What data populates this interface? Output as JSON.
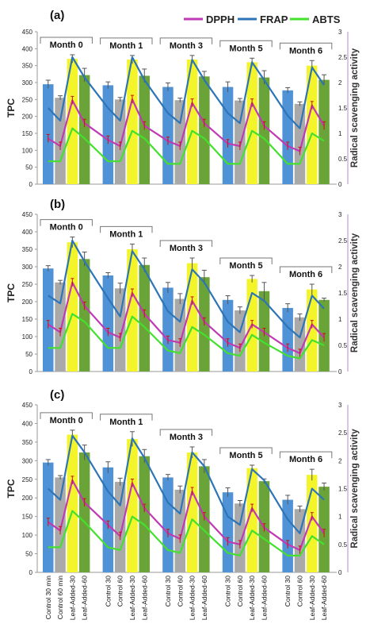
{
  "legend": [
    {
      "label": "DPPH",
      "color": "#c03ab3"
    },
    {
      "label": "FRAP",
      "color": "#2d75b6"
    },
    {
      "label": "ABTS",
      "color": "#44e02e"
    }
  ],
  "colors": {
    "control30": "#4f92d6",
    "control60": "#a9a9a9",
    "leaf30": "#f4f42a",
    "leaf60": "#6aa338",
    "dpph": "#c03ab3",
    "frap": "#2d75b6",
    "abts": "#44e02e",
    "errorbar": "#cc1111"
  },
  "chart_data": [
    {
      "type": "bar",
      "panel_label": "(a)",
      "ylabel": "TPC",
      "y2label": "Radical scavenging activity",
      "ylim": [
        0,
        450
      ],
      "y2lim": [
        0,
        3
      ],
      "yticks": [
        0,
        50,
        100,
        150,
        200,
        250,
        300,
        350,
        400,
        450
      ],
      "y2ticks": [
        0,
        0.5,
        1,
        1.5,
        2,
        2.5,
        3
      ],
      "groups": [
        "Month 0",
        "Month 1",
        "Month 3",
        "Month 5",
        "Month 6"
      ],
      "bar_series": [
        "Control 30 min",
        "Control 60 min",
        "Leaf-Added-30",
        "Leaf-Added-60"
      ],
      "bar_values": [
        [
          295,
          255,
          370,
          322
        ],
        [
          292,
          250,
          368,
          320
        ],
        [
          287,
          248,
          368,
          318
        ],
        [
          287,
          247,
          360,
          315
        ],
        [
          277,
          237,
          350,
          308
        ]
      ],
      "bar_errors": [
        [
          12,
          6,
          12,
          20
        ],
        [
          10,
          6,
          12,
          20
        ],
        [
          12,
          6,
          12,
          15
        ],
        [
          15,
          6,
          12,
          20
        ],
        [
          8,
          6,
          15,
          15
        ]
      ],
      "lines": [
        {
          "name": "DPPH",
          "values": [
            [
              0.9,
              0.75,
              1.65,
              1.2
            ],
            [
              0.87,
              0.75,
              1.67,
              1.15
            ],
            [
              0.85,
              0.75,
              1.6,
              1.2
            ],
            [
              0.8,
              0.75,
              1.6,
              1.15
            ],
            [
              0.75,
              0.65,
              1.55,
              1.15
            ]
          ]
        },
        {
          "name": "FRAP",
          "values": [
            [
              1.5,
              1.25,
              2.5,
              2.1
            ],
            [
              1.5,
              1.25,
              2.5,
              2.05
            ],
            [
              1.4,
              1.2,
              2.45,
              2.05
            ],
            [
              1.4,
              1.2,
              2.4,
              2.05
            ],
            [
              1.35,
              1.1,
              2.3,
              1.95
            ]
          ]
        },
        {
          "name": "ABTS",
          "values": [
            [
              0.45,
              0.45,
              1.1,
              0.9
            ],
            [
              0.45,
              0.45,
              1.05,
              0.9
            ],
            [
              0.4,
              0.4,
              1.05,
              0.9
            ],
            [
              0.4,
              0.4,
              1.05,
              0.9
            ],
            [
              0.4,
              0.4,
              1.0,
              0.85
            ]
          ]
        }
      ]
    },
    {
      "type": "bar",
      "panel_label": "(b)",
      "ylabel": "TPC",
      "y2label": "Radical scavenging activity",
      "ylim": [
        0,
        450
      ],
      "y2lim": [
        0,
        3
      ],
      "yticks": [
        0,
        50,
        100,
        150,
        200,
        250,
        300,
        350,
        400,
        450
      ],
      "y2ticks": [
        0,
        0.5,
        1,
        1.5,
        2,
        2.5,
        3
      ],
      "groups": [
        "Month 0",
        "Month 1",
        "Month 3",
        "Month 5",
        "Month 6"
      ],
      "bar_series": [
        "Control 30 min",
        "Control 60 min",
        "Leaf-Added-30",
        "Leaf-Added-60"
      ],
      "bar_values": [
        [
          295,
          255,
          370,
          322
        ],
        [
          275,
          238,
          350,
          305
        ],
        [
          240,
          208,
          310,
          270
        ],
        [
          205,
          175,
          265,
          230
        ],
        [
          182,
          155,
          235,
          205
        ]
      ],
      "bar_errors": [
        [
          8,
          6,
          15,
          20
        ],
        [
          8,
          15,
          15,
          20
        ],
        [
          15,
          15,
          15,
          20
        ],
        [
          12,
          10,
          10,
          25
        ],
        [
          12,
          10,
          15,
          5
        ]
      ],
      "lines": [
        {
          "name": "DPPH",
          "values": [
            [
              0.9,
              0.75,
              1.7,
              1.25
            ],
            [
              0.75,
              0.65,
              1.5,
              1.1
            ],
            [
              0.6,
              0.55,
              1.35,
              0.95
            ],
            [
              0.55,
              0.45,
              0.9,
              0.75
            ],
            [
              0.45,
              0.35,
              0.9,
              0.65
            ]
          ]
        },
        {
          "name": "FRAP",
          "values": [
            [
              1.45,
              1.3,
              2.5,
              2.1
            ],
            [
              1.4,
              1.05,
              2.3,
              1.95
            ],
            [
              1.15,
              0.95,
              1.95,
              1.7
            ],
            [
              0.95,
              0.75,
              1.5,
              1.35
            ],
            [
              0.85,
              0.65,
              1.45,
              1.2
            ]
          ]
        },
        {
          "name": "ABTS",
          "values": [
            [
              0.45,
              0.45,
              1.1,
              0.95
            ],
            [
              0.45,
              0.45,
              1.05,
              0.85
            ],
            [
              0.4,
              0.35,
              0.85,
              0.7
            ],
            [
              0.35,
              0.3,
              0.7,
              0.55
            ],
            [
              0.3,
              0.25,
              0.6,
              0.5
            ]
          ]
        }
      ]
    },
    {
      "type": "bar",
      "panel_label": "(c)",
      "ylabel": "TPC",
      "y2label": "Radical scavenging activity",
      "ylim": [
        0,
        450
      ],
      "y2lim": [
        0,
        3
      ],
      "yticks": [
        0,
        50,
        100,
        150,
        200,
        250,
        300,
        350,
        400,
        450
      ],
      "y2ticks": [
        0,
        0.5,
        1,
        1.5,
        2,
        2.5,
        3
      ],
      "groups": [
        "Month 0",
        "Month 1",
        "Month 3",
        "Month 5",
        "Month 6"
      ],
      "bar_series": [
        "Control 30 min",
        "Control 60 min",
        "Leaf-Added-30",
        "Leaf-Added-60"
      ],
      "bar_values": [
        [
          295,
          255,
          370,
          322
        ],
        [
          282,
          243,
          358,
          312
        ],
        [
          255,
          222,
          322,
          285
        ],
        [
          215,
          185,
          280,
          245
        ],
        [
          195,
          170,
          262,
          230
        ]
      ],
      "bar_errors": [
        [
          8,
          5,
          12,
          20
        ],
        [
          15,
          10,
          20,
          18
        ],
        [
          8,
          10,
          15,
          18
        ],
        [
          12,
          8,
          8,
          6
        ],
        [
          12,
          8,
          15,
          10
        ]
      ],
      "lines": [
        {
          "name": "DPPH",
          "values": [
            [
              0.9,
              0.75,
              1.65,
              1.25
            ],
            [
              0.85,
              0.65,
              1.6,
              1.15
            ],
            [
              0.7,
              0.6,
              1.45,
              1.0
            ],
            [
              0.55,
              0.5,
              1.15,
              0.8
            ],
            [
              0.5,
              0.4,
              1.0,
              0.7
            ]
          ]
        },
        {
          "name": "FRAP",
          "values": [
            [
              1.5,
              1.3,
              2.45,
              2.15
            ],
            [
              1.45,
              1.2,
              2.4,
              2.05
            ],
            [
              1.25,
              1.05,
              2.15,
              1.9
            ],
            [
              1.0,
              0.85,
              1.85,
              1.65
            ],
            [
              0.95,
              0.7,
              1.5,
              1.3
            ]
          ]
        },
        {
          "name": "ABTS",
          "values": [
            [
              0.45,
              0.45,
              1.1,
              0.9
            ],
            [
              0.45,
              0.4,
              1.0,
              0.85
            ],
            [
              0.4,
              0.35,
              0.95,
              0.75
            ],
            [
              0.35,
              0.3,
              0.75,
              0.6
            ],
            [
              0.3,
              0.3,
              0.65,
              0.5
            ]
          ]
        }
      ]
    }
  ],
  "x_labels": [
    "Control 30 min",
    "Control 60 min",
    "Leaf-Added-30",
    "Leaf-Added-60",
    "Control 30",
    "Control 60",
    "Leaf-Added-30",
    "Leaf-Added-60",
    "Control 30",
    "Control 60",
    "Leaf-Added-30",
    "Leaf-Added-60",
    "Control 30",
    "Control 60",
    "Leaf-Added-30",
    "Leaf-Added-60",
    "Control 30",
    "Control 60",
    "Leaf-Added-30",
    "Leaf-Added-60"
  ]
}
